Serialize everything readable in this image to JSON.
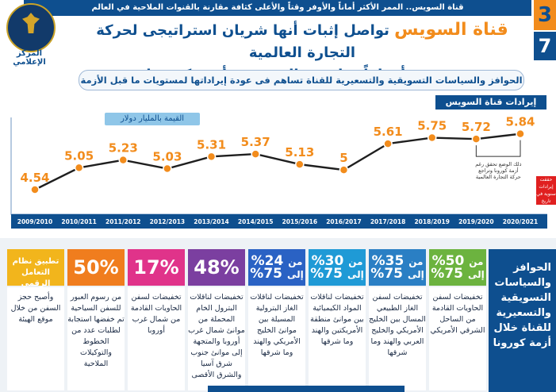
{
  "top_bar": "قناة السويس.. الممر الأكثر أماناً والأوفر وقتاً والأعلى كثافة مقارنة بالقنوات الملاحية في العالم",
  "badge": {
    "top": "3",
    "bottom": "7"
  },
  "logo_caption": "المركز الإعلامي",
  "headline": {
    "accent": "قناة السويس",
    "line1": "تواصل إثبات أنها شريان استراتيجى لحركة التجارة العالمية",
    "line2": "وتحقق أرقاماً قياسية بالرغم من أزمة كورونا"
  },
  "subheadline": "الحوافز والسياسات التسويقية والتسعيرية للقناة تساهم فى عودة إيراداتها لمستويات ما قبل الأزمة",
  "chart_data": {
    "type": "line",
    "title": "إيرادات قناة السويس",
    "ylabel": "القيمة بالمليار دولار",
    "xlabel": "",
    "categories": [
      "2009/2010",
      "2010/2011",
      "2011/2012",
      "2012/2013",
      "2013/2014",
      "2014/2015",
      "2015/2016",
      "2016/2017",
      "2017/2018",
      "2018/2019",
      "2019/2020",
      "2020/2021"
    ],
    "values": [
      4.54,
      5.05,
      5.23,
      5.03,
      5.31,
      5.37,
      5.13,
      5.0,
      5.61,
      5.75,
      5.72,
      5.84
    ],
    "value_labels": [
      "4.54",
      "5.05",
      "5.23",
      "5.03",
      "5.31",
      "5.37",
      "5.13",
      "5",
      "5.61",
      "5.75",
      "5.72",
      "5.84"
    ],
    "ylim": [
      4.3,
      6.0
    ],
    "grid": false,
    "annotation": "ذلك الوضع تحقق رغم أزمة كورونا وتراجع حركة التجارة العالمية",
    "colors": {
      "line": "#1f1f1f",
      "marker": "#f28c1c",
      "label": "#f28c1c",
      "axis": "#0e4f8f"
    }
  },
  "cards": [
    {
      "color": "#6cb33f",
      "head_from": "من",
      "head_value1": "50%",
      "head_to": "إلى",
      "head_value2": "75%",
      "desc": "تخفيضات لسفن الحاويات القادمة من الساحل الشرقي الأمريكي"
    },
    {
      "color": "#2a7fc4",
      "head_from": "من",
      "head_value1": "35%",
      "head_to": "إلى",
      "head_value2": "75%",
      "desc": "تخفيضات لسفن الغاز الطبيعي المسال بين الخليج الأمريكي والخليج العربي والهند وما شرقها"
    },
    {
      "color": "#1f9ad6",
      "head_from": "من",
      "head_value1": "30%",
      "head_to": "إلى",
      "head_value2": "75%",
      "desc": "تخفيضات لناقلات المواد الكيميائية بين موانئ منطقة الأمريكتين والهند وما شرقها"
    },
    {
      "color": "#2a62c4",
      "head_from": "من",
      "head_value1": "24%",
      "head_to": "إلى",
      "head_value2": "75%",
      "desc": "تخفيضات لناقلات الغاز البترولية المسيلة بين موانئ الخليج الأمريكي والهند وما شرقها"
    },
    {
      "color": "#7b3fa0",
      "head_value1": "48%",
      "desc": "تخفيضات لناقلات البترول الخام المحملة من موانئ شمال غرب أوروبا والمتجهة إلى موانئ جنوب شرق آسيا والشرق الأقصى"
    },
    {
      "color": "#e0338a",
      "head_value1": "17%",
      "desc": "تخفيضات لسفن الحاويات القادمة من شمال غرب أوروبا"
    },
    {
      "color": "#f07d1e",
      "head_value1": "50%",
      "desc": "من رسوم العبور للسفن السياحية تم خفضها استجابة لطلبات عدد من الخطوط والتوكيلات الملاحية"
    },
    {
      "color": "#f2b51c",
      "head_value1": "تطبيق نظام التعامل الرقمي",
      "desc": "وأصبح حجز السفن من خلال موقع الهيئة"
    }
  ],
  "side_panel": {
    "line1": "الحوافز",
    "line2": "والسياسات",
    "line3": "التسويقية",
    "line4": "والتسعيرية",
    "line5": "للقناة خلال",
    "line6": "أزمة كورونا"
  },
  "right_note": "حققت إيرادات سنوية في تاريخ القناة"
}
